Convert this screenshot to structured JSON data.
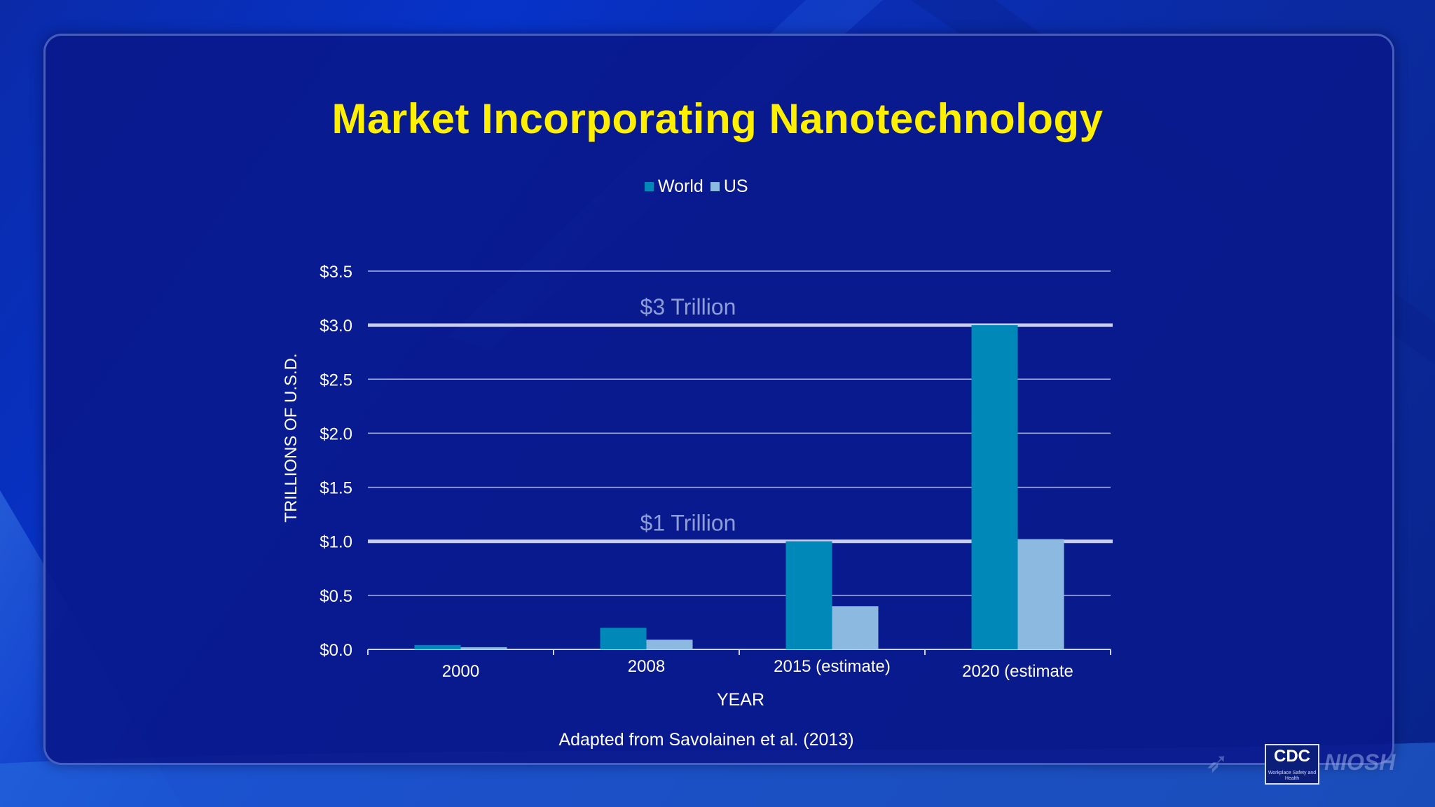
{
  "slide": {
    "source_note": "Adapted from Savolainen et al. (2013)",
    "logo": {
      "cdc_text": "CDC",
      "cdc_sub": "Workplace Safety and Health",
      "niosh_text": "NIOSH"
    }
  },
  "chart_data": {
    "type": "bar",
    "title": "Market Incorporating Nanotechnology",
    "xlabel": "YEAR",
    "ylabel": "TRILLIONS OF U.S.D.",
    "categories": [
      "2000",
      "2008",
      "2015 (estimate)",
      "2020 (estimate"
    ],
    "series": [
      {
        "name": "World",
        "color": "#0088b8",
        "values": [
          0.04,
          0.2,
          1.0,
          3.0
        ]
      },
      {
        "name": "US",
        "color": "#8bb9e0",
        "values": [
          0.02,
          0.09,
          0.4,
          1.02
        ]
      }
    ],
    "ylim": [
      0,
      3.5
    ],
    "yticks": [
      "$0.0",
      "$0.5",
      "$1.0",
      "$1.5",
      "$2.0",
      "$2.5",
      "$3.0",
      "$3.5"
    ],
    "ytick_values": [
      0,
      0.5,
      1.0,
      1.5,
      2.0,
      2.5,
      3.0,
      3.5
    ],
    "grid": true,
    "legend": "top-center",
    "reference_lines": [
      {
        "value": 3.0,
        "label": "$3 Trillion"
      },
      {
        "value": 1.0,
        "label": "$1 Trillion"
      }
    ]
  }
}
